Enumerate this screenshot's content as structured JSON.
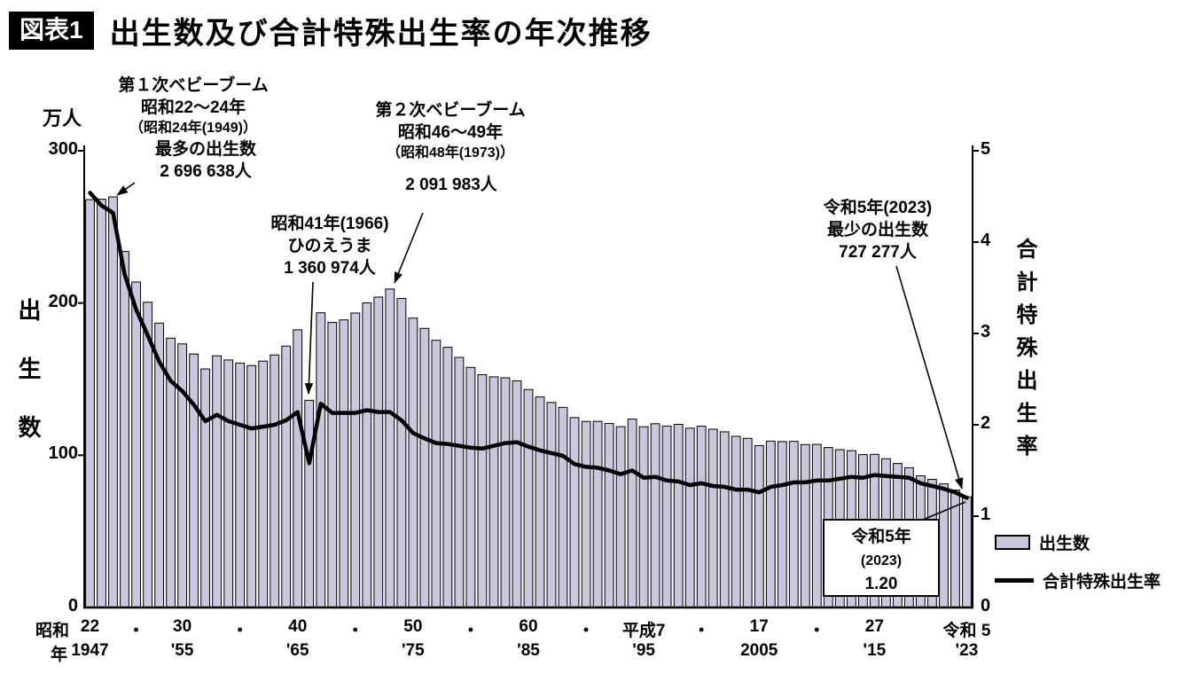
{
  "header": {
    "badge": "図表1",
    "title": "出生数及び合計特殊出生率の年次推移"
  },
  "axes": {
    "left_unit": "万人",
    "left_title": "出生数",
    "right_title": "合計特殊出生率",
    "era_label": "昭和",
    "era_unit": "年"
  },
  "xaxis": {
    "ticks": [
      {
        "year": 1947,
        "top": "22",
        "bottom": "1947"
      },
      {
        "year": 1951,
        "top": "・"
      },
      {
        "year": 1955,
        "top": "30",
        "bottom": "'55"
      },
      {
        "year": 1960,
        "top": "・"
      },
      {
        "year": 1965,
        "top": "40",
        "bottom": "'65"
      },
      {
        "year": 1970,
        "top": "・"
      },
      {
        "year": 1975,
        "top": "50",
        "bottom": "'75"
      },
      {
        "year": 1980,
        "top": "・"
      },
      {
        "year": 1985,
        "top": "60",
        "bottom": "'85"
      },
      {
        "year": 1990,
        "top": "・"
      },
      {
        "year": 1995,
        "top": "平成7",
        "bottom": "'95"
      },
      {
        "year": 2000,
        "top": "・"
      },
      {
        "year": 2005,
        "top": "17",
        "bottom": "2005"
      },
      {
        "year": 2010,
        "top": "・"
      },
      {
        "year": 2015,
        "top": "27",
        "bottom": "'15"
      },
      {
        "year": 2023,
        "top": "令和 5",
        "bottom": "'23"
      }
    ]
  },
  "annotations": {
    "boom1": {
      "lines": [
        "第１次ベビーブーム",
        "昭和22～24年",
        "（昭和24年(1949)）"
      ]
    },
    "boom1_peak": {
      "lines": [
        "最多の出生数",
        "2 696 638人"
      ]
    },
    "boom2": {
      "lines": [
        "第２次ベビーブーム",
        "昭和46～49年",
        "（昭和48年(1973)）"
      ],
      "value": "2 091 983人"
    },
    "hinoeuma": {
      "lines": [
        "昭和41年(1966)",
        "ひのえうま",
        "1 360 974人"
      ]
    },
    "low2023": {
      "lines": [
        "令和5年(2023)",
        "最少の出生数",
        "727 277人"
      ]
    },
    "rate_box": {
      "lines": [
        "令和5年",
        "(2023)",
        "1.20"
      ]
    }
  },
  "legend": {
    "bars": "出生数",
    "line": "合計特殊出生率"
  },
  "colors": {
    "bar_fill": "#c9c6de",
    "bar_stroke": "#000000",
    "line": "#000000"
  },
  "chart_data": {
    "type": "bar+line",
    "title": "出生数及び合計特殊出生率の年次推移",
    "x": [
      1947,
      1948,
      1949,
      1950,
      1951,
      1952,
      1953,
      1954,
      1955,
      1956,
      1957,
      1958,
      1959,
      1960,
      1961,
      1962,
      1963,
      1964,
      1965,
      1966,
      1967,
      1968,
      1969,
      1970,
      1971,
      1972,
      1973,
      1974,
      1975,
      1976,
      1977,
      1978,
      1979,
      1980,
      1981,
      1982,
      1983,
      1984,
      1985,
      1986,
      1987,
      1988,
      1989,
      1990,
      1991,
      1992,
      1993,
      1994,
      1995,
      1996,
      1997,
      1998,
      1999,
      2000,
      2001,
      2002,
      2003,
      2004,
      2005,
      2006,
      2007,
      2008,
      2009,
      2010,
      2011,
      2012,
      2013,
      2014,
      2015,
      2016,
      2017,
      2018,
      2019,
      2020,
      2021,
      2022,
      2023
    ],
    "series": [
      {
        "name": "出生数",
        "type": "bar",
        "axis": "left",
        "unit": "万人",
        "values": [
          267.9,
          268.2,
          269.7,
          233.8,
          213.8,
          200.5,
          186.8,
          176.9,
          173.1,
          166.5,
          156.7,
          165.3,
          162.6,
          160.6,
          158.9,
          161.8,
          165.9,
          171.7,
          182.4,
          136.1,
          193.6,
          187.2,
          188.9,
          193.4,
          200.1,
          203.9,
          209.2,
          203.0,
          190.1,
          183.3,
          175.5,
          170.9,
          164.3,
          157.7,
          152.9,
          151.5,
          150.9,
          148.9,
          143.2,
          138.3,
          134.7,
          131.4,
          124.7,
          122.2,
          122.3,
          120.9,
          118.8,
          123.8,
          118.7,
          120.7,
          119.2,
          120.3,
          117.8,
          119.1,
          117.1,
          115.4,
          112.4,
          111.1,
          106.3,
          109.3,
          109.0,
          109.1,
          107.0,
          107.1,
          105.1,
          103.7,
          103.0,
          100.4,
          100.6,
          97.7,
          94.6,
          91.8,
          86.5,
          84.1,
          81.2,
          77.1,
          72.7
        ]
      },
      {
        "name": "合計特殊出生率",
        "type": "line",
        "axis": "right",
        "values": [
          4.54,
          4.4,
          4.32,
          3.65,
          3.26,
          2.98,
          2.69,
          2.48,
          2.37,
          2.22,
          2.04,
          2.11,
          2.04,
          2.0,
          1.96,
          1.98,
          2.0,
          2.05,
          2.14,
          1.58,
          2.23,
          2.13,
          2.13,
          2.13,
          2.16,
          2.14,
          2.14,
          2.05,
          1.91,
          1.85,
          1.8,
          1.79,
          1.77,
          1.75,
          1.74,
          1.77,
          1.8,
          1.81,
          1.76,
          1.72,
          1.69,
          1.66,
          1.57,
          1.54,
          1.53,
          1.5,
          1.46,
          1.5,
          1.42,
          1.43,
          1.39,
          1.38,
          1.34,
          1.36,
          1.33,
          1.32,
          1.29,
          1.29,
          1.26,
          1.32,
          1.34,
          1.37,
          1.37,
          1.39,
          1.39,
          1.41,
          1.43,
          1.42,
          1.45,
          1.44,
          1.43,
          1.42,
          1.36,
          1.33,
          1.3,
          1.26,
          1.2
        ]
      }
    ],
    "left_axis": {
      "label": "出生数",
      "unit": "万人",
      "range": [
        0,
        300
      ],
      "ticks": [
        0,
        100,
        200,
        300
      ]
    },
    "right_axis": {
      "label": "合計特殊出生率",
      "range": [
        0,
        5
      ],
      "ticks": [
        0,
        1,
        2,
        3,
        4,
        5
      ]
    },
    "grid": false,
    "legend_position": "right"
  }
}
